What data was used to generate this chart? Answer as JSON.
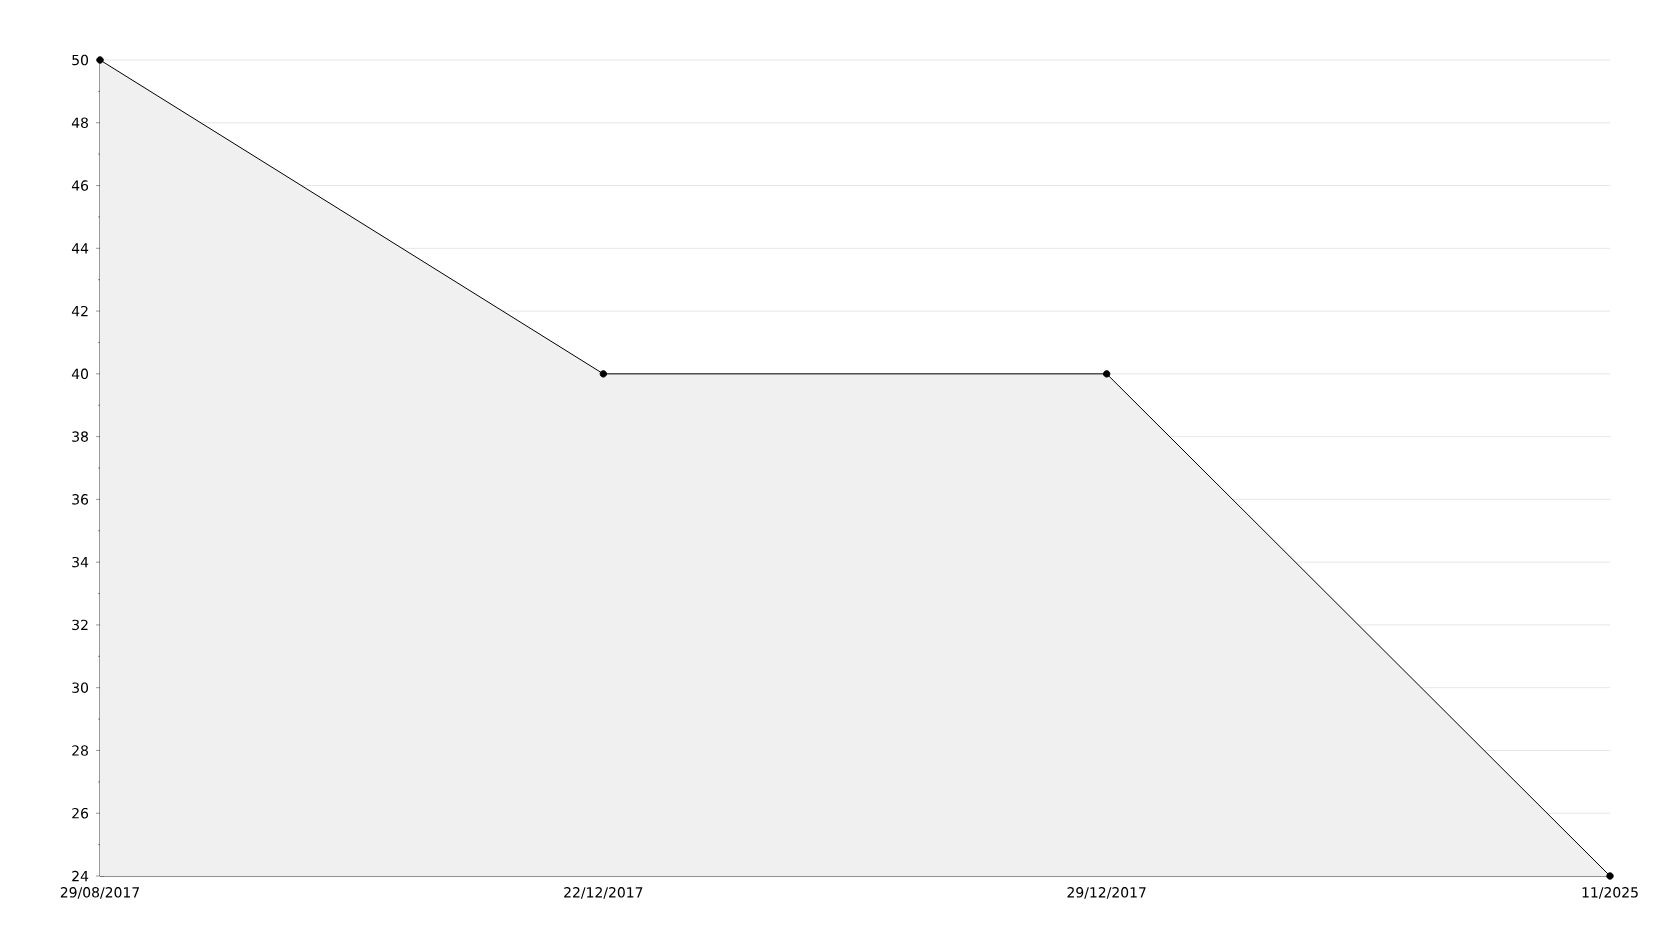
{
  "chart_data": {
    "type": "area",
    "categories": [
      "29/08/2017",
      "22/12/2017",
      "29/12/2017",
      "11/2025"
    ],
    "values": [
      50,
      40,
      40,
      24
    ],
    "color": "#000000",
    "ylim": [
      24,
      50
    ],
    "yticks": [
      24,
      26,
      28,
      30,
      32,
      34,
      36,
      38,
      40,
      42,
      44,
      46,
      48,
      50
    ],
    "grid": "y",
    "marker": "circle",
    "line_style": "solid"
  }
}
